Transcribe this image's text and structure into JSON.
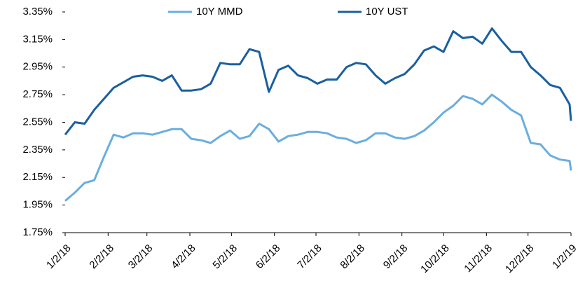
{
  "chart_data": {
    "type": "line",
    "x": [
      "1/2/18",
      "1/9/18",
      "1/16/18",
      "1/23/18",
      "1/30/18",
      "2/6/18",
      "2/13/18",
      "2/20/18",
      "2/27/18",
      "3/6/18",
      "3/13/18",
      "3/20/18",
      "3/27/18",
      "4/3/18",
      "4/10/18",
      "4/17/18",
      "4/24/18",
      "5/1/18",
      "5/8/18",
      "5/15/18",
      "5/22/18",
      "5/29/18",
      "6/5/18",
      "6/12/18",
      "6/19/18",
      "6/26/18",
      "7/3/18",
      "7/10/18",
      "7/17/18",
      "7/24/18",
      "7/31/18",
      "8/7/18",
      "8/14/18",
      "8/21/18",
      "8/28/18",
      "9/4/18",
      "9/11/18",
      "9/18/18",
      "9/25/18",
      "10/2/18",
      "10/9/18",
      "10/16/18",
      "10/23/18",
      "10/30/18",
      "11/6/18",
      "11/13/18",
      "11/20/18",
      "11/27/18",
      "12/4/18",
      "12/11/18",
      "12/18/18",
      "12/25/18",
      "1/1/19",
      "1/2/19"
    ],
    "series": [
      {
        "name": "10Y MMD",
        "color": "#6aaee0",
        "values": [
          1.98,
          2.04,
          2.11,
          2.13,
          2.3,
          2.46,
          2.44,
          2.47,
          2.47,
          2.46,
          2.48,
          2.5,
          2.5,
          2.43,
          2.42,
          2.4,
          2.45,
          2.49,
          2.43,
          2.45,
          2.54,
          2.5,
          2.41,
          2.45,
          2.46,
          2.48,
          2.48,
          2.47,
          2.44,
          2.43,
          2.4,
          2.42,
          2.47,
          2.47,
          2.44,
          2.43,
          2.45,
          2.49,
          2.55,
          2.62,
          2.67,
          2.74,
          2.72,
          2.68,
          2.75,
          2.7,
          2.64,
          2.6,
          2.4,
          2.39,
          2.31,
          2.28,
          2.27,
          2.2
        ]
      },
      {
        "name": "10Y UST",
        "color": "#1a5fa0",
        "values": [
          2.46,
          2.55,
          2.54,
          2.64,
          2.72,
          2.8,
          2.84,
          2.88,
          2.89,
          2.88,
          2.85,
          2.89,
          2.78,
          2.78,
          2.79,
          2.83,
          2.98,
          2.97,
          2.97,
          3.08,
          3.06,
          2.77,
          2.93,
          2.96,
          2.89,
          2.87,
          2.83,
          2.86,
          2.86,
          2.95,
          2.98,
          2.97,
          2.89,
          2.83,
          2.87,
          2.9,
          2.97,
          3.07,
          3.1,
          3.06,
          3.21,
          3.16,
          3.17,
          3.12,
          3.23,
          3.14,
          3.06,
          3.06,
          2.95,
          2.89,
          2.82,
          2.8,
          2.68,
          2.56
        ]
      }
    ],
    "xlim": [
      "1/2/18",
      "1/2/19"
    ],
    "xticks": [
      "1/2/18",
      "2/2/18",
      "3/2/18",
      "4/2/18",
      "5/2/18",
      "6/2/18",
      "7/2/18",
      "8/2/18",
      "9/2/18",
      "10/2/18",
      "11/2/18",
      "12/2/18",
      "1/2/19"
    ],
    "ylim": [
      1.75,
      3.35
    ],
    "yticks": [
      {
        "value": 1.75,
        "label": "1.75%"
      },
      {
        "value": 1.95,
        "label": "1.95%"
      },
      {
        "value": 2.15,
        "label": "2.15%"
      },
      {
        "value": 2.35,
        "label": "2.35%"
      },
      {
        "value": 2.55,
        "label": "2.55%"
      },
      {
        "value": 2.75,
        "label": "2.75%"
      },
      {
        "value": 2.95,
        "label": "2.95%"
      },
      {
        "value": 3.15,
        "label": "3.15%"
      },
      {
        "value": 3.35,
        "label": "3.35%"
      }
    ],
    "legend": "top"
  }
}
